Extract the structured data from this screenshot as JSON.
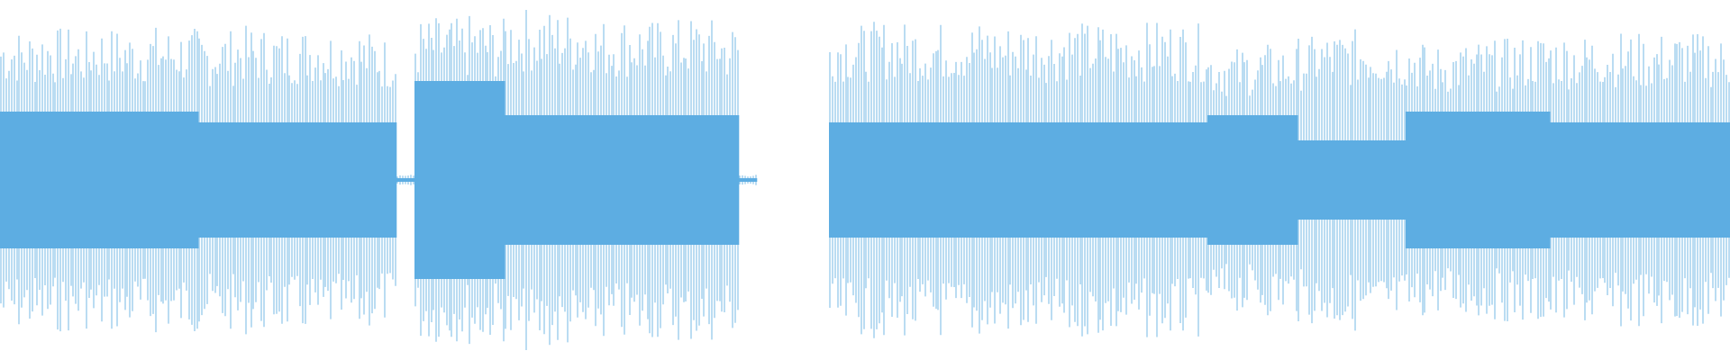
{
  "waveform": {
    "color": "#5dade2",
    "peaks": [
      0.85,
      0.84,
      0.86,
      0.85,
      0.83,
      0.86,
      0.85,
      0.84,
      0.86,
      0.85,
      0.85,
      0.83,
      0.84,
      0.86,
      0.85,
      0.84,
      0.85,
      0.86,
      0.84,
      0.85,
      0.83,
      0.8,
      0.03,
      0.9,
      0.91,
      0.9,
      0.92,
      0.9,
      0.95,
      0.96,
      0.95,
      0.94,
      0.95,
      0.9,
      0.91,
      0.9,
      0.89,
      0.9,
      0.91,
      0.9,
      0.88,
      0.03,
      0,
      0,
      0,
      0,
      0.88,
      0.87,
      0.88,
      0.89,
      0.88,
      0.87,
      0.88,
      0.88,
      0.89,
      0.87,
      0.88,
      0.88,
      0.87,
      0.89,
      0.88,
      0.88,
      0.87,
      0.88,
      0.89,
      0.88,
      0.87,
      0.75,
      0.74,
      0.75,
      0.76,
      0.75,
      0.8,
      0.82,
      0.83,
      0.84,
      0.83,
      0.82,
      0.8,
      0.75,
      0.76,
      0.77,
      0.78,
      0.79,
      0.8,
      0.82,
      0.82,
      0.81,
      0.82,
      0.83,
      0.82,
      0.81,
      0.82,
      0.83,
      0.82,
      0.8
    ],
    "rms": [
      0.38,
      0.38,
      0.38,
      0.38,
      0.38,
      0.38,
      0.38,
      0.38,
      0.38,
      0.38,
      0.38,
      0.32,
      0.32,
      0.32,
      0.32,
      0.32,
      0.32,
      0.32,
      0.32,
      0.32,
      0.32,
      0.32,
      0.01,
      0.55,
      0.55,
      0.55,
      0.55,
      0.55,
      0.36,
      0.36,
      0.36,
      0.36,
      0.36,
      0.36,
      0.36,
      0.36,
      0.36,
      0.36,
      0.36,
      0.36,
      0.36,
      0.01,
      0,
      0,
      0,
      0,
      0.32,
      0.32,
      0.32,
      0.32,
      0.32,
      0.32,
      0.32,
      0.32,
      0.32,
      0.32,
      0.32,
      0.32,
      0.32,
      0.32,
      0.32,
      0.32,
      0.32,
      0.32,
      0.32,
      0.32,
      0.32,
      0.36,
      0.36,
      0.36,
      0.36,
      0.36,
      0.22,
      0.22,
      0.22,
      0.22,
      0.22,
      0.22,
      0.38,
      0.38,
      0.38,
      0.38,
      0.38,
      0.38,
      0.38,
      0.38,
      0.32,
      0.32,
      0.32,
      0.32,
      0.32,
      0.32,
      0.32,
      0.32,
      0.32,
      0.32
    ]
  }
}
